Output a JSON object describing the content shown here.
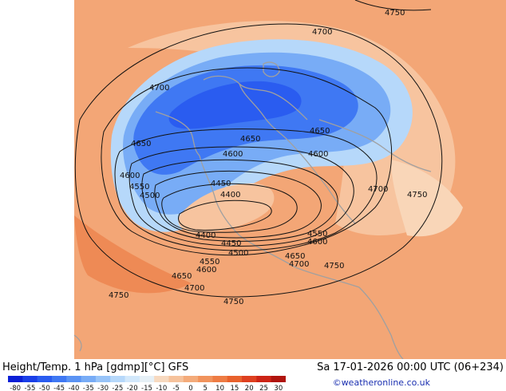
{
  "header": {
    "product": "Height/Temp. 1 hPa [gdmp][°C] GFS",
    "valid_time": "Sa 17-01-2026 00:00 UTC (06+234)"
  },
  "credit": "©weatheronline.co.uk",
  "legend": {
    "labels": [
      "-80",
      "-55",
      "-50",
      "-45",
      "-40",
      "-35",
      "-30",
      "-25",
      "-20",
      "-15",
      "-10",
      "-5",
      "0",
      "5",
      "10",
      "15",
      "20",
      "25",
      "30"
    ],
    "colors": [
      "#0a1fd6",
      "#1a3fe8",
      "#2a5cf0",
      "#3f78f3",
      "#5a93f4",
      "#78acf6",
      "#97c3f8",
      "#b6d8fa",
      "#d2e8fb",
      "#e6f0f6",
      "#f7d9bf",
      "#f6c29b",
      "#f4ab7a",
      "#f1935c",
      "#ee7c44",
      "#e8612c",
      "#de4020",
      "#cc2416",
      "#b0140e"
    ]
  },
  "map": {
    "contour_labels": [
      "4750",
      "4700",
      "4700",
      "4650",
      "4650",
      "4650",
      "4600",
      "4600",
      "4600",
      "4550",
      "4500",
      "4450",
      "4400",
      "4400",
      "4450",
      "4500",
      "4550",
      "4550",
      "4600",
      "4600",
      "4650",
      "4700",
      "4700",
      "4750",
      "4650",
      "4700",
      "4750",
      "4750",
      "4750"
    ],
    "colors": {
      "warm": "#f3a676",
      "warm_light": "#f7c49f",
      "warm_dark": "#ee8a55",
      "cold_dark": "#3f78f3",
      "cold_mid": "#78acf6",
      "cold_light": "#b6d8fa",
      "coast": "#a0a0a0",
      "contour": "#111111"
    }
  }
}
